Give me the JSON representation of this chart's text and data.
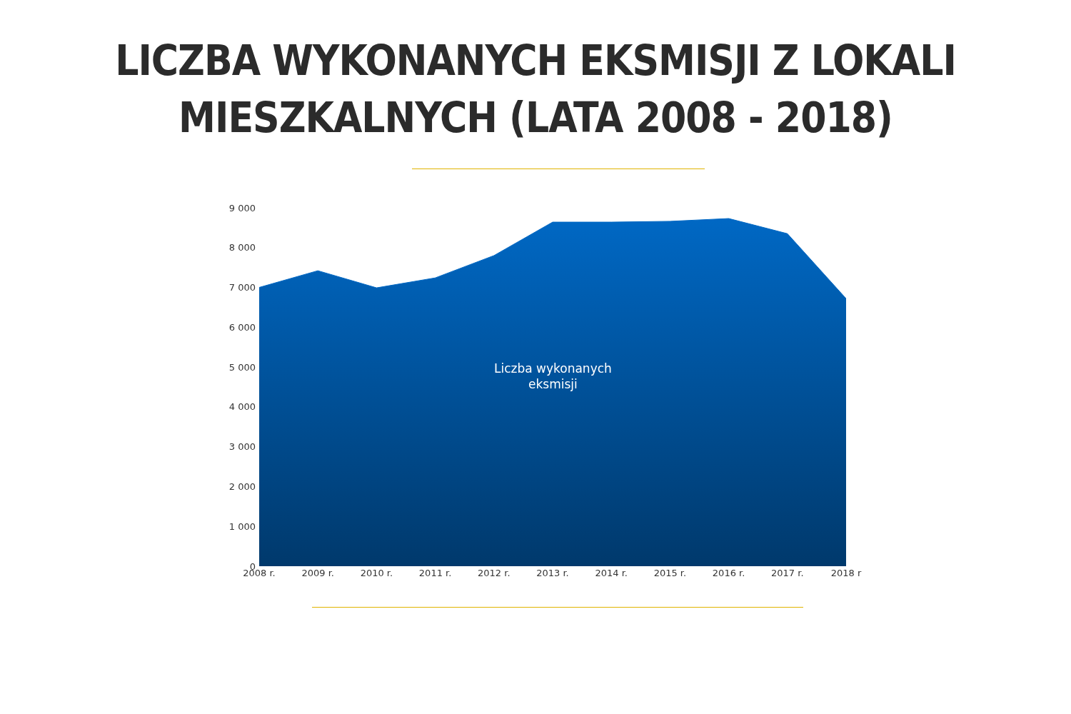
{
  "chart_data": {
    "type": "area",
    "title": "LICZBA WYKONANYCH EKSMISJI Z LOKALI MIESZKALNYCH (LATA 2008 - 2018)",
    "categories": [
      "2008 r.",
      "2009 r.",
      "2010 r.",
      "2011 r.",
      "2012 r.",
      "2013 r.",
      "2014 r.",
      "2015 r.",
      "2016 r.",
      "2017 r.",
      "2018 r"
    ],
    "series": [
      {
        "name": "Liczba wykonanych eksmisji",
        "color": "#0068c4",
        "values": [
          7000,
          7420,
          6990,
          7240,
          7800,
          8640,
          8640,
          8660,
          8730,
          8350,
          6720
        ]
      }
    ],
    "ylim": [
      0,
      9000
    ],
    "yticks": [
      0,
      {
        "value": 1000,
        "label": "1 000"
      },
      {
        "value": 2000,
        "label": "2 000"
      },
      {
        "value": 3000,
        "label": "3 000"
      },
      {
        "value": 4000,
        "label": "4 000"
      },
      {
        "value": 5000,
        "label": "5 000"
      },
      {
        "value": 6000,
        "label": "6 000"
      },
      {
        "value": 7000,
        "label": "7 000"
      },
      {
        "value": 8000,
        "label": "8 000"
      },
      {
        "value": 9000,
        "label": "9 000"
      }
    ],
    "grid": false,
    "legend": false
  }
}
